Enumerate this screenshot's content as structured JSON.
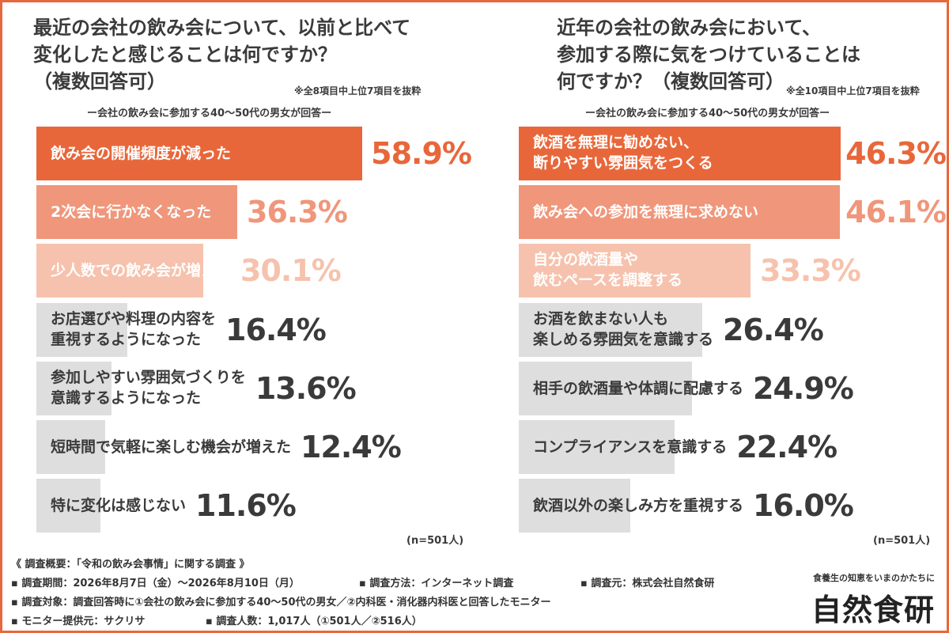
{
  "colors": {
    "frame": "#e8673a",
    "bar_shades": [
      "#e8673a",
      "#f0967a",
      "#f6c2ad",
      "#dedede"
    ],
    "text_dark": "#3a3a3a",
    "text_light": "#ffffff"
  },
  "chart_data": [
    {
      "type": "bar",
      "orientation": "horizontal",
      "title": "最近の会社の飲み会について、以前と比べて 変化したと感じることは何ですか？ （複数回答可）",
      "title_lines": [
        "最近の会社の飲み会について、以前と比べて",
        "変化したと感じることは何ですか？",
        "（複数回答可）"
      ],
      "note": "※全8項目中上位7項目を抜粋",
      "subtitle": "ー会社の飲み会に参加する40〜50代の男女が回答ー",
      "categories": [
        "飲み会の開催頻度が減った",
        "2次会に行かなくなった",
        "少人数での飲み会が増えた",
        "お店選びや料理の内容を 重視するようになった",
        "参加しやすい雰囲気づくりを 意識するようになった",
        "短時間で気軽に楽しむ機会が増えた",
        "特に変化は感じない"
      ],
      "category_lines": [
        [
          "飲み会の開催頻度が減った"
        ],
        [
          "2次会に行かなくなった"
        ],
        [
          "少人数での飲み会が増えた"
        ],
        [
          "お店選びや料理の内容を",
          "重視するようになった"
        ],
        [
          "参加しやすい雰囲気づくりを",
          "意識するようになった"
        ],
        [
          "短時間で気軽に楽しむ機会が増えた"
        ],
        [
          "特に変化は感じない"
        ]
      ],
      "values": [
        58.9,
        36.3,
        30.1,
        16.4,
        13.6,
        12.4,
        11.6
      ],
      "value_labels": [
        "58.9%",
        "36.3%",
        "30.1%",
        "16.4%",
        "13.6%",
        "12.4%",
        "11.6%"
      ],
      "unit": "%",
      "xlim": [
        0,
        100
      ],
      "n_label": "(n=501人)"
    },
    {
      "type": "bar",
      "orientation": "horizontal",
      "title": "近年の会社の飲み会において、 参加する際に気をつけていることは 何ですか？（複数回答可）",
      "title_lines": [
        "近年の会社の飲み会において、",
        "参加する際に気をつけていることは",
        "何ですか？（複数回答可）"
      ],
      "note": "※全10項目中上位7項目を抜粋",
      "subtitle": "ー会社の飲み会に参加する40〜50代の男女が回答ー",
      "categories": [
        "飲酒を無理に勧めない、 断りやすい雰囲気をつくる",
        "飲み会への参加を無理に求めない",
        "自分の飲酒量や 飲むペースを調整する",
        "お酒を飲まない人も 楽しめる雰囲気を意識する",
        "相手の飲酒量や体調に配慮する",
        "コンプライアンスを意識する",
        "飲酒以外の楽しみ方を重視する"
      ],
      "category_lines": [
        [
          "飲酒を無理に勧めない、",
          "断りやすい雰囲気をつくる"
        ],
        [
          "飲み会への参加を無理に求めない"
        ],
        [
          "自分の飲酒量や",
          "飲むペースを調整する"
        ],
        [
          "お酒を飲まない人も",
          "楽しめる雰囲気を意識する"
        ],
        [
          "相手の飲酒量や体調に配慮する"
        ],
        [
          "コンプライアンスを意識する"
        ],
        [
          "飲酒以外の楽しみ方を重視する"
        ]
      ],
      "values": [
        46.3,
        46.1,
        33.3,
        26.4,
        24.9,
        22.4,
        16.0
      ],
      "value_labels": [
        "46.3%",
        "46.1%",
        "33.3%",
        "26.4%",
        "24.9%",
        "22.4%",
        "16.0%"
      ],
      "unit": "%",
      "xlim": [
        0,
        100
      ],
      "n_label": "(n=501人)"
    }
  ],
  "footer": {
    "heading": "《 調査概要：「令和の飲み会事情」に関する調査 》",
    "period": "▪ 調査期間：2026年8月7日（金）〜2026年8月10日（月）",
    "method": "▪ 調査方法：インターネット調査",
    "source": "▪ 調査元：株式会社自然食研",
    "target": "▪ 調査対象：調査回答時に①会社の飲み会に参加する40〜50代の男女／②内科医・消化器内科医と回答したモニター",
    "provider": "▪ モニター提供元：サクリサ",
    "count": "▪ 調査人数：1,017人（①501人／②516人）"
  },
  "brand": {
    "tagline": "食養生の知恵をいまのかたちに",
    "logo": "自然食研"
  }
}
